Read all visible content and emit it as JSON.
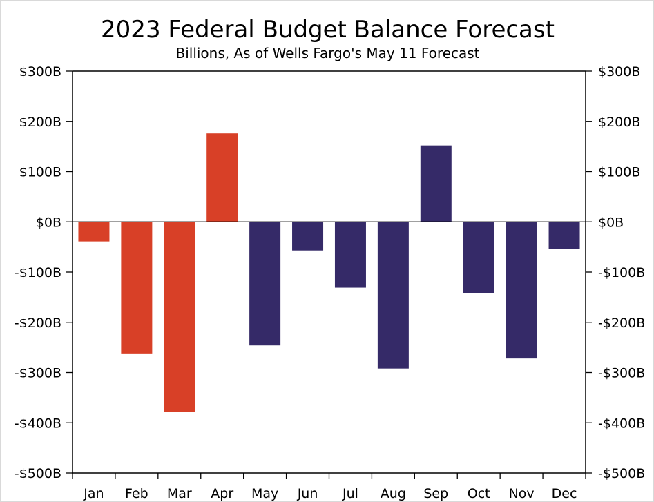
{
  "chart_data": {
    "type": "bar",
    "title": "2023 Federal Budget Balance Forecast",
    "subtitle": "Billions, As of Wells Fargo's May 11 Forecast",
    "xlabel": "",
    "ylabel": "",
    "categories": [
      "Jan",
      "Feb",
      "Mar",
      "Apr",
      "May",
      "Jun",
      "Jul",
      "Aug",
      "Sep",
      "Oct",
      "Nov",
      "Dec"
    ],
    "values": [
      -39,
      -262,
      -378,
      176,
      -246,
      -57,
      -131,
      -292,
      152,
      -142,
      -272,
      -54
    ],
    "value_types": [
      "actual",
      "actual",
      "actual",
      "actual",
      "forecast",
      "forecast",
      "forecast",
      "forecast",
      "forecast",
      "forecast",
      "forecast",
      "forecast"
    ],
    "colors": {
      "actual": "#d84027",
      "forecast": "#352a68",
      "axis": "#000000"
    },
    "ylim": [
      -500,
      300
    ],
    "yticks": [
      300,
      200,
      100,
      0,
      -100,
      -200,
      -300,
      -400,
      -500
    ],
    "ytick_labels": [
      "$300B",
      "$200B",
      "$100B",
      "$0B",
      "-$100B",
      "-$200B",
      "-$300B",
      "-$400B",
      "-$500B"
    ],
    "grid": false,
    "dual_y_axis": true
  }
}
